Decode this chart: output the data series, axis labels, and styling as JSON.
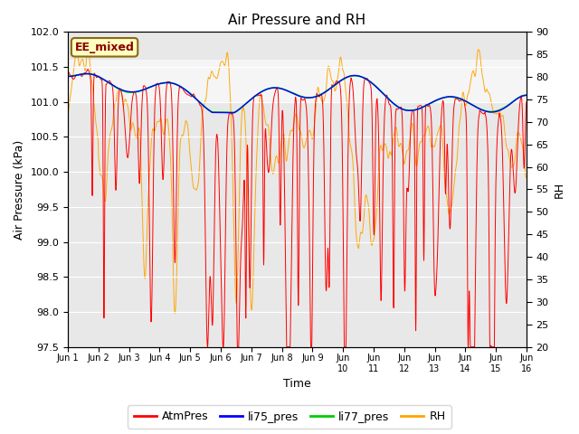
{
  "title": "Air Pressure and RH",
  "xlabel": "Time",
  "ylabel_left": "Air Pressure (kPa)",
  "ylabel_right": "RH",
  "ylim_left": [
    97.5,
    102.0
  ],
  "ylim_right": [
    20,
    90
  ],
  "yticks_left": [
    97.5,
    98.0,
    98.5,
    99.0,
    99.5,
    100.0,
    100.5,
    101.0,
    101.5,
    102.0
  ],
  "yticks_right": [
    20,
    25,
    30,
    35,
    40,
    45,
    50,
    55,
    60,
    65,
    70,
    75,
    80,
    85,
    90
  ],
  "xtick_labels": [
    "Jun 1",
    "Jun 2",
    "Jun 3",
    "Jun 4",
    "Jun 5",
    "Jun 6",
    "Jun 7",
    "Jun 8",
    "Jun 9",
    "Jun\n10",
    "Jun\n11",
    "Jun\n12",
    "Jun\n13",
    "Jun\n14",
    "Jun\n15",
    "Jun\n16"
  ],
  "annotation_text": "EE_mixed",
  "annotation_color": "#8B0000",
  "annotation_bg": "#FFFFC0",
  "annotation_border": "#8B6914",
  "colors": {
    "AtmPres": "#FF0000",
    "li75_pres": "#0000FF",
    "li77_pres": "#00CC00",
    "RH": "#FFA500"
  },
  "legend_labels": [
    "AtmPres",
    "li75_pres",
    "li77_pres",
    "RH"
  ],
  "shaded_region": [
    101.0,
    101.6
  ],
  "background_color": "#FFFFFF",
  "plot_bg_color": "#E8E8E8"
}
